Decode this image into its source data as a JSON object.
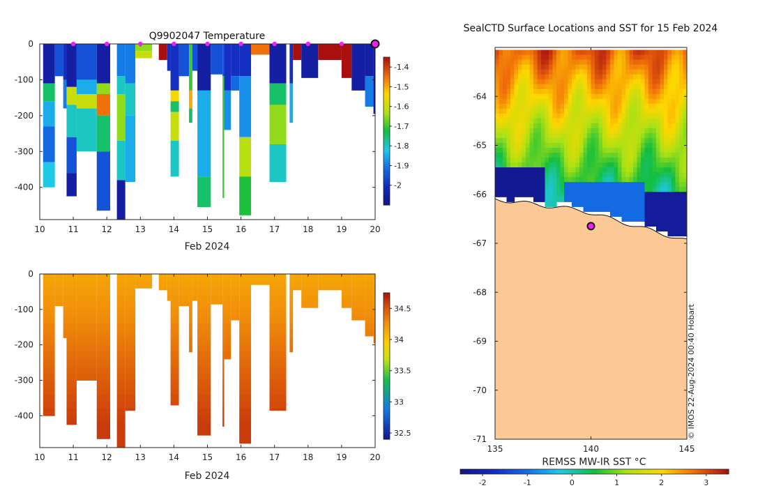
{
  "chart_data": [
    {
      "type": "heatmap",
      "name": "temperature-section",
      "title": "Q9902047  Temperature",
      "xlabel": "Feb 2024",
      "ylabel": "",
      "x_ticks": [
        "10",
        "11",
        "12",
        "13",
        "14",
        "15",
        "16",
        "17",
        "18",
        "19",
        "20"
      ],
      "y_ticks": [
        "0",
        "-100",
        "-200",
        "-300",
        "-400"
      ],
      "xlim": [
        10,
        20
      ],
      "ylim": [
        -490,
        0
      ],
      "colorbar": {
        "min": -2.1,
        "max": -1.35,
        "ticks": [
          {
            "v": -1.4,
            "label": "-1.4"
          },
          {
            "v": -1.5,
            "label": "-1.5"
          },
          {
            "v": -1.6,
            "label": "-1.6"
          },
          {
            "v": -1.7,
            "label": "-1.7"
          },
          {
            "v": -1.8,
            "label": "-1.8"
          },
          {
            "v": -1.9,
            "label": "-1.9"
          },
          {
            "v": -2.0,
            "label": "-2"
          }
        ]
      },
      "surface_markers_days": [
        11,
        12,
        13,
        14,
        15,
        16,
        17,
        18,
        19
      ],
      "current_position_day": 20,
      "profiles": [
        {
          "x0": 10.1,
          "x1": 10.45,
          "depth": 400,
          "segments": [
            [
              0,
              110,
              -2.05
            ],
            [
              110,
              160,
              -1.75
            ],
            [
              160,
              230,
              -1.85
            ],
            [
              230,
              330,
              -1.92
            ],
            [
              330,
              400,
              -1.82
            ]
          ]
        },
        {
          "x0": 10.45,
          "x1": 10.7,
          "depth": 90,
          "segments": [
            [
              0,
              90,
              -1.95
            ]
          ]
        },
        {
          "x0": 10.7,
          "x1": 10.8,
          "depth": 180,
          "segments": [
            [
              0,
              100,
              -2.0
            ],
            [
              100,
              180,
              -1.9
            ]
          ]
        },
        {
          "x0": 10.8,
          "x1": 11.1,
          "depth": 425,
          "segments": [
            [
              0,
              120,
              -2.05
            ],
            [
              120,
              170,
              -1.6
            ],
            [
              170,
              260,
              -1.8
            ],
            [
              260,
              360,
              -1.95
            ],
            [
              360,
              425,
              -2.05
            ]
          ]
        },
        {
          "x0": 11.1,
          "x1": 11.7,
          "depth": 300,
          "segments": [
            [
              0,
              100,
              -1.95
            ],
            [
              100,
              140,
              -1.85
            ],
            [
              140,
              180,
              -1.6
            ],
            [
              180,
              300,
              -1.8
            ]
          ]
        },
        {
          "x0": 11.7,
          "x1": 12.1,
          "depth": 465,
          "segments": [
            [
              0,
              110,
              -2.05
            ],
            [
              110,
              140,
              -1.65
            ],
            [
              140,
              200,
              -1.45
            ],
            [
              200,
              300,
              -1.75
            ],
            [
              300,
              465,
              -1.95
            ]
          ]
        },
        {
          "x0": 12.3,
          "x1": 12.55,
          "depth": 490,
          "segments": [
            [
              0,
              90,
              -1.9
            ],
            [
              90,
              140,
              -1.8
            ],
            [
              140,
              270,
              -1.65
            ],
            [
              270,
              380,
              -1.8
            ],
            [
              380,
              490,
              -2.05
            ]
          ]
        },
        {
          "x0": 12.55,
          "x1": 12.85,
          "depth": 385,
          "segments": [
            [
              0,
              110,
              -1.9
            ],
            [
              110,
              200,
              -1.8
            ],
            [
              200,
              385,
              -1.85
            ]
          ]
        },
        {
          "x0": 12.85,
          "x1": 13.35,
          "depth": 40,
          "segments": [
            [
              0,
              20,
              -1.65
            ],
            [
              20,
              40,
              -1.6
            ]
          ]
        },
        {
          "x0": 13.55,
          "x1": 13.8,
          "depth": 45,
          "segments": [
            [
              0,
              45,
              -1.35
            ]
          ]
        },
        {
          "x0": 13.8,
          "x1": 13.9,
          "depth": 75,
          "segments": [
            [
              0,
              75,
              -2.0
            ]
          ]
        },
        {
          "x0": 13.9,
          "x1": 14.15,
          "depth": 370,
          "segments": [
            [
              0,
              130,
              -2.0
            ],
            [
              130,
              160,
              -1.55
            ],
            [
              160,
              190,
              -1.75
            ],
            [
              190,
              270,
              -1.6
            ],
            [
              270,
              370,
              -1.8
            ]
          ]
        },
        {
          "x0": 14.15,
          "x1": 14.45,
          "depth": 90,
          "segments": [
            [
              0,
              90,
              -1.95
            ]
          ]
        },
        {
          "x0": 14.45,
          "x1": 14.55,
          "depth": 220,
          "segments": [
            [
              0,
              130,
              -1.7
            ],
            [
              130,
              180,
              -1.5
            ],
            [
              180,
              220,
              -1.75
            ]
          ]
        },
        {
          "x0": 14.55,
          "x1": 14.7,
          "depth": 75,
          "segments": [
            [
              0,
              75,
              -1.95
            ]
          ]
        },
        {
          "x0": 14.7,
          "x1": 15.1,
          "depth": 455,
          "segments": [
            [
              0,
              130,
              -2.05
            ],
            [
              130,
              370,
              -1.85
            ],
            [
              370,
              455,
              -1.75
            ]
          ]
        },
        {
          "x0": 15.1,
          "x1": 15.45,
          "depth": 85,
          "segments": [
            [
              0,
              85,
              -1.95
            ]
          ]
        },
        {
          "x0": 15.45,
          "x1": 15.5,
          "depth": 430,
          "segments": [
            [
              0,
              90,
              -1.95
            ],
            [
              90,
              430,
              -1.7
            ]
          ]
        },
        {
          "x0": 15.5,
          "x1": 15.7,
          "depth": 240,
          "segments": [
            [
              0,
              130,
              -2.0
            ],
            [
              130,
              240,
              -1.88
            ]
          ]
        },
        {
          "x0": 15.7,
          "x1": 15.95,
          "depth": 130,
          "segments": [
            [
              0,
              90,
              -2.0
            ],
            [
              90,
              130,
              -1.92
            ]
          ]
        },
        {
          "x0": 15.95,
          "x1": 16.3,
          "depth": 478,
          "segments": [
            [
              0,
              90,
              -2.0
            ],
            [
              90,
              260,
              -1.88
            ],
            [
              260,
              370,
              -1.62
            ],
            [
              370,
              478,
              -1.72
            ]
          ]
        },
        {
          "x0": 16.3,
          "x1": 16.85,
          "depth": 30,
          "segments": [
            [
              0,
              30,
              -1.45
            ]
          ]
        },
        {
          "x0": 16.85,
          "x1": 17.35,
          "depth": 385,
          "segments": [
            [
              0,
              110,
              -2.05
            ],
            [
              110,
              170,
              -1.75
            ],
            [
              170,
              280,
              -1.65
            ],
            [
              280,
              385,
              -1.8
            ]
          ]
        },
        {
          "x0": 17.45,
          "x1": 17.55,
          "depth": 220,
          "segments": [
            [
              0,
              110,
              -2.0
            ],
            [
              110,
              220,
              -1.85
            ]
          ]
        },
        {
          "x0": 17.55,
          "x1": 17.8,
          "depth": 45,
          "segments": [
            [
              0,
              45,
              -1.35
            ]
          ]
        },
        {
          "x0": 17.8,
          "x1": 18.3,
          "depth": 95,
          "segments": [
            [
              0,
              95,
              -2.05
            ]
          ]
        },
        {
          "x0": 18.3,
          "x1": 19.0,
          "depth": 45,
          "segments": [
            [
              0,
              45,
              -1.35
            ]
          ]
        },
        {
          "x0": 19.0,
          "x1": 19.3,
          "depth": 95,
          "segments": [
            [
              0,
              95,
              -1.35
            ]
          ]
        },
        {
          "x0": 19.3,
          "x1": 19.7,
          "depth": 130,
          "segments": [
            [
              0,
              130,
              -2.05
            ]
          ]
        },
        {
          "x0": 19.7,
          "x1": 19.95,
          "depth": 175,
          "segments": [
            [
              0,
              90,
              -2.05
            ],
            [
              90,
              175,
              -1.9
            ]
          ]
        },
        {
          "x0": 19.95,
          "x1": 20.0,
          "depth": 195,
          "segments": [
            [
              0,
              195,
              -2.05
            ]
          ]
        }
      ]
    },
    {
      "type": "heatmap",
      "name": "salinity-section",
      "title": "",
      "xlabel": "Feb 2024",
      "ylabel": "",
      "x_ticks": [
        "10",
        "11",
        "12",
        "13",
        "14",
        "15",
        "16",
        "17",
        "18",
        "19",
        "20"
      ],
      "y_ticks": [
        "0",
        "-100",
        "-200",
        "-300",
        "-400"
      ],
      "xlim": [
        10,
        20
      ],
      "ylim": [
        -490,
        0
      ],
      "colorbar": {
        "min": 32.4,
        "max": 34.75,
        "ticks": [
          {
            "v": 34.5,
            "label": "34.5"
          },
          {
            "v": 34.0,
            "label": "34"
          },
          {
            "v": 33.5,
            "label": "33.5"
          },
          {
            "v": 33.0,
            "label": "33"
          },
          {
            "v": 32.5,
            "label": "32.5"
          }
        ]
      }
    },
    {
      "type": "heatmap",
      "name": "sst-map",
      "title": "SealCTD Surface Locations and SST for 15 Feb 2024",
      "xlabel": "REMSS MW-IR SST °C",
      "x_ticks": [
        "135",
        "140",
        "145"
      ],
      "y_ticks": [
        "-64",
        "-65",
        "-66",
        "-67",
        "-68",
        "-69",
        "-70",
        "-71"
      ],
      "xlim": [
        135,
        145
      ],
      "ylim": [
        -71,
        -63.0
      ],
      "colorbar": {
        "min": -2.5,
        "max": 3.5,
        "ticks": [
          {
            "v": -2,
            "label": "-2"
          },
          {
            "v": -1,
            "label": "-1"
          },
          {
            "v": 0,
            "label": "0"
          },
          {
            "v": 1,
            "label": "1"
          },
          {
            "v": 2,
            "label": "2"
          },
          {
            "v": 3,
            "label": "3"
          }
        ]
      },
      "seal_location": {
        "lon": 140.0,
        "lat": -66.65
      },
      "credit": "© IMOS 22-Aug-2024 00:40 Hobart"
    }
  ]
}
